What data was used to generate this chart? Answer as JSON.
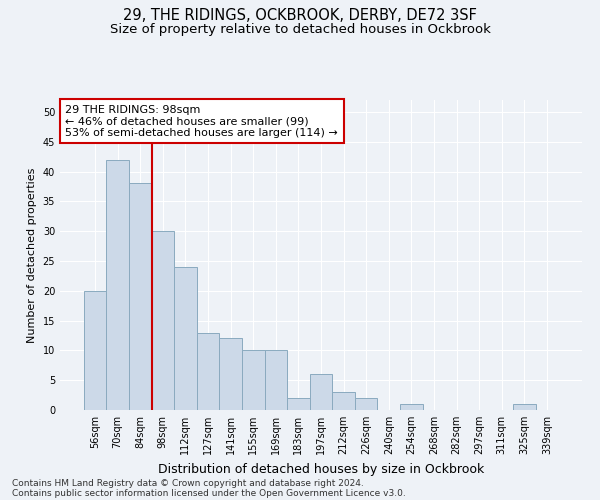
{
  "title": "29, THE RIDINGS, OCKBROOK, DERBY, DE72 3SF",
  "subtitle": "Size of property relative to detached houses in Ockbrook",
  "xlabel": "Distribution of detached houses by size in Ockbrook",
  "ylabel": "Number of detached properties",
  "bar_labels": [
    "56sqm",
    "70sqm",
    "84sqm",
    "98sqm",
    "112sqm",
    "127sqm",
    "141sqm",
    "155sqm",
    "169sqm",
    "183sqm",
    "197sqm",
    "212sqm",
    "226sqm",
    "240sqm",
    "254sqm",
    "268sqm",
    "282sqm",
    "297sqm",
    "311sqm",
    "325sqm",
    "339sqm"
  ],
  "bar_values": [
    20,
    42,
    38,
    30,
    24,
    13,
    12,
    10,
    10,
    2,
    6,
    3,
    2,
    0,
    1,
    0,
    0,
    0,
    0,
    1,
    0
  ],
  "bar_color": "#ccd9e8",
  "bar_edge_color": "#8aaabf",
  "ylim": [
    0,
    52
  ],
  "yticks": [
    0,
    5,
    10,
    15,
    20,
    25,
    30,
    35,
    40,
    45,
    50
  ],
  "red_line_index": 3,
  "annotation_title": "29 THE RIDINGS: 98sqm",
  "annotation_line1": "← 46% of detached houses are smaller (99)",
  "annotation_line2": "53% of semi-detached houses are larger (114) →",
  "annotation_box_facecolor": "#ffffff",
  "annotation_box_edgecolor": "#cc0000",
  "red_line_color": "#cc0000",
  "footnote1": "Contains HM Land Registry data © Crown copyright and database right 2024.",
  "footnote2": "Contains public sector information licensed under the Open Government Licence v3.0.",
  "background_color": "#eef2f7",
  "grid_color": "#ffffff",
  "title_fontsize": 10.5,
  "subtitle_fontsize": 9.5,
  "xlabel_fontsize": 9,
  "ylabel_fontsize": 8,
  "tick_fontsize": 7,
  "annotation_fontsize": 8,
  "footnote_fontsize": 6.5
}
